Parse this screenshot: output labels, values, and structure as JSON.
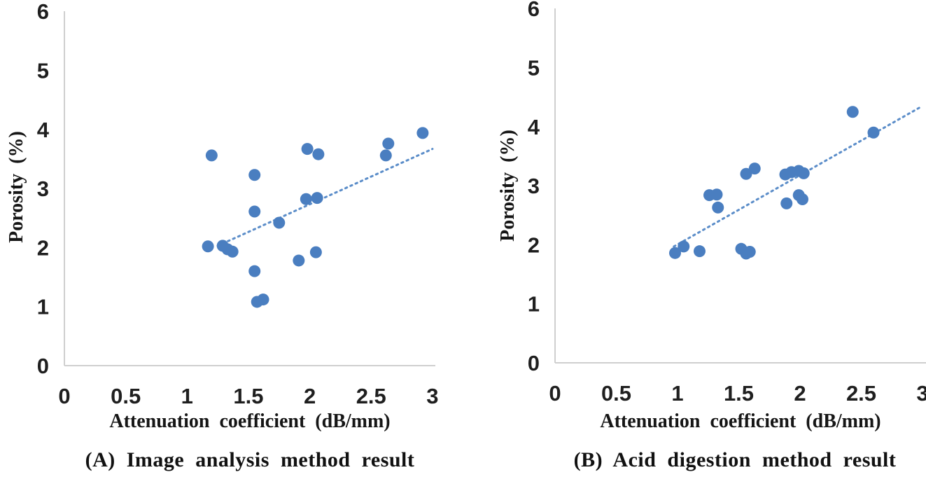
{
  "style": {
    "dot_color": "#4a7ec0",
    "trend_color": "#5b8dc9",
    "axis_color": "#cfcfcf",
    "text_color": "#1f1f1f"
  },
  "chart_data": [
    {
      "type": "scatter",
      "caption": "(A) Image analysis method result",
      "xlabel": "Attenuation coefficient (dB/mm)",
      "ylabel": "Porosity (%)",
      "xlim": [
        0,
        3
      ],
      "ylim": [
        0,
        6
      ],
      "xticks": [
        "0",
        "0.5",
        "1",
        "1.5",
        "2",
        "2.5",
        "3"
      ],
      "yticks": [
        "0",
        "1",
        "2",
        "3",
        "4",
        "5",
        "6"
      ],
      "grid": false,
      "legend": "none",
      "trendline": {
        "style": "dotted",
        "x1": 1.25,
        "y1": 2.03,
        "x2": 3.0,
        "y2": 3.67
      },
      "points": [
        [
          1.2,
          3.56
        ],
        [
          1.55,
          3.23
        ],
        [
          1.55,
          2.61
        ],
        [
          1.17,
          2.02
        ],
        [
          1.29,
          2.03
        ],
        [
          1.33,
          1.97
        ],
        [
          1.37,
          1.93
        ],
        [
          1.75,
          2.42
        ],
        [
          1.97,
          2.82
        ],
        [
          2.06,
          2.84
        ],
        [
          1.98,
          3.67
        ],
        [
          2.07,
          3.58
        ],
        [
          2.62,
          3.56
        ],
        [
          2.64,
          3.76
        ],
        [
          2.92,
          3.94
        ],
        [
          2.05,
          1.92
        ],
        [
          1.91,
          1.78
        ],
        [
          1.55,
          1.6
        ],
        [
          1.57,
          1.08
        ],
        [
          1.62,
          1.12
        ]
      ]
    },
    {
      "type": "scatter",
      "caption": "(B) Acid digestion method result",
      "xlabel": "Attenuation coefficient (dB/mm)",
      "ylabel": "Porosity (%)",
      "xlim": [
        0,
        3
      ],
      "ylim": [
        0,
        6
      ],
      "xticks": [
        "0",
        "0.5",
        "1",
        "1.5",
        "2",
        "2.5",
        "3"
      ],
      "yticks": [
        "0",
        "1",
        "2",
        "3",
        "4",
        "5",
        "6"
      ],
      "grid": false,
      "legend": "none",
      "trendline": {
        "style": "dotted",
        "x1": 0.97,
        "y1": 1.97,
        "x2": 3.0,
        "y2": 4.35
      },
      "points": [
        [
          0.98,
          1.86
        ],
        [
          1.05,
          1.97
        ],
        [
          1.18,
          1.89
        ],
        [
          1.26,
          2.84
        ],
        [
          1.32,
          2.85
        ],
        [
          1.33,
          2.63
        ],
        [
          1.52,
          1.93
        ],
        [
          1.56,
          1.85
        ],
        [
          1.59,
          1.88
        ],
        [
          1.56,
          3.2
        ],
        [
          1.63,
          3.29
        ],
        [
          1.88,
          3.19
        ],
        [
          1.93,
          3.23
        ],
        [
          1.99,
          3.25
        ],
        [
          2.03,
          3.21
        ],
        [
          1.89,
          2.7
        ],
        [
          1.99,
          2.84
        ],
        [
          2.02,
          2.77
        ],
        [
          2.43,
          4.25
        ],
        [
          2.6,
          3.9
        ]
      ]
    }
  ]
}
